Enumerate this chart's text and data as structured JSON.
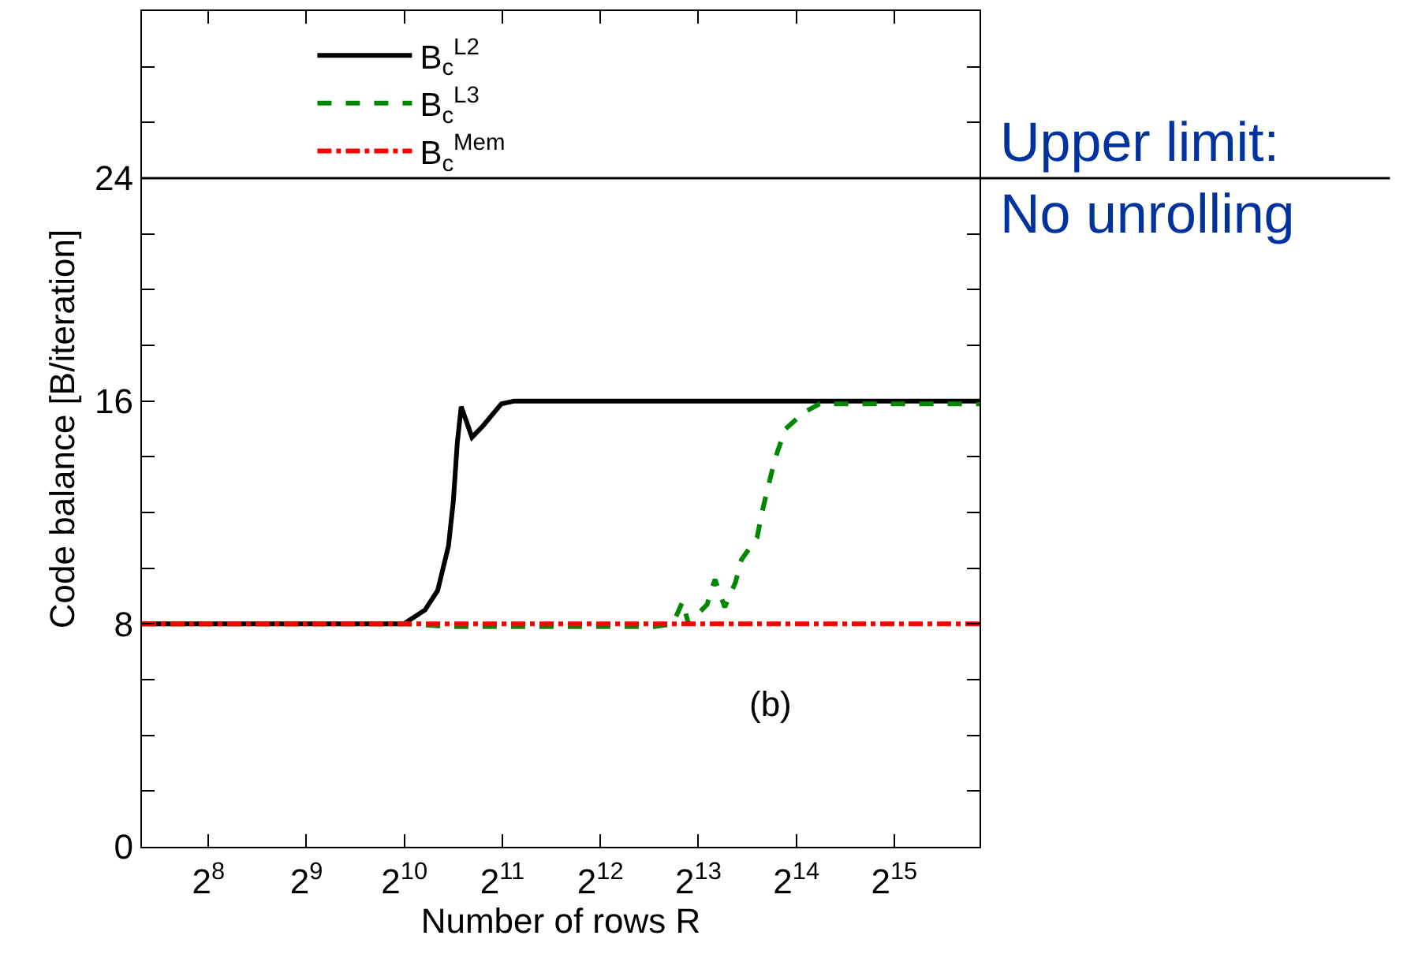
{
  "chart_data": {
    "type": "line",
    "xlabel": "Number of rows R",
    "ylabel": "Code balance [B/iteration]",
    "log": "x",
    "grid": false,
    "legend": "top left",
    "marker": "none",
    "xlim": [
      160,
      59900
    ],
    "xticks": [
      {
        "value": 256,
        "label": "2$^{8}$"
      },
      {
        "value": 512,
        "label": "2$^{9}$"
      },
      {
        "value": 1024,
        "label": "2$^{10}$"
      },
      {
        "value": 2048,
        "label": "2$^{11}$"
      },
      {
        "value": 4096,
        "label": "2$^{12}$"
      },
      {
        "value": 8192,
        "label": "2$^{13}$"
      },
      {
        "value": 16384,
        "label": "2$^{14}$"
      },
      {
        "value": 32768,
        "label": "2$^{15}$"
      }
    ],
    "ylim": [
      0,
      30
    ],
    "yticks": [
      0,
      {
        "value": 2,
        "label": null
      },
      {
        "value": 4,
        "label": null
      },
      {
        "value": 6,
        "label": null
      },
      8,
      {
        "value": 10,
        "label": null
      },
      {
        "value": 12,
        "label": null
      },
      {
        "value": 14,
        "label": null
      },
      16,
      {
        "value": 18,
        "label": null
      },
      {
        "value": 20,
        "label": null
      },
      {
        "value": 22,
        "label": null
      },
      24,
      {
        "value": 26,
        "label": null
      },
      {
        "value": 28,
        "label": null
      }
    ],
    "series": [
      {
        "name": "B$_{c}$$^{L2}$",
        "color": "#000000",
        "line_style": "solid",
        "x": [
          160,
          1020,
          1185,
          1296,
          1399,
          1448,
          1489,
          1531,
          1652,
          1783,
          2034,
          2226,
          59900
        ],
        "values": [
          8.0,
          8.0,
          8.5,
          9.2,
          10.8,
          12.4,
          14.5,
          15.8,
          14.7,
          15.1,
          15.9,
          16.0,
          16.0
        ]
      },
      {
        "name": "B$_{c}$$^{L3}$",
        "color": "#008800",
        "line_style": "dashed",
        "x": [
          160,
          1024,
          1450,
          6000,
          6840,
          7330,
          7643,
          8718,
          9216,
          9878,
          10660,
          11110,
          12417,
          12850,
          13870,
          14360,
          15180,
          17320,
          19350,
          59900
        ],
        "values": [
          8.0,
          8.0,
          7.9,
          7.9,
          8.0,
          8.8,
          8.0,
          8.7,
          9.6,
          8.6,
          9.5,
          10.3,
          11.1,
          12.0,
          13.6,
          14.2,
          15.0,
          15.6,
          15.9,
          15.9
        ]
      },
      {
        "name": "B$_{c}$$^{Mem}$",
        "color": "#ff0000",
        "line_style": "dashdot",
        "x": [
          160,
          59900
        ],
        "values": [
          8.0,
          8.0
        ]
      }
    ],
    "ref_lines": [
      {
        "axis": "y",
        "value": 24,
        "label": "Upper limit:\nNo unrolling",
        "color": "#000000"
      }
    ],
    "annotations": [
      "(b)"
    ]
  }
}
